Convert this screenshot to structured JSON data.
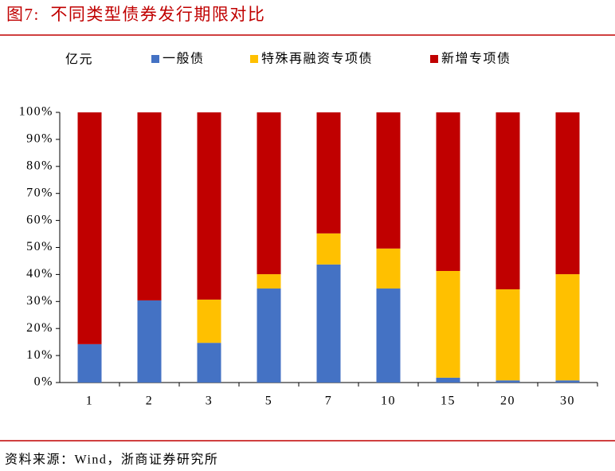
{
  "chart_data": {
    "type": "stacked_bar",
    "title": "图7:  不同类型债券发行期限对比",
    "y_unit_label": "亿元",
    "source": "资料来源：Wind，浙商证券研究所",
    "categories": [
      "1",
      "2",
      "3",
      "5",
      "7",
      "10",
      "15",
      "20",
      "30"
    ],
    "series": [
      {
        "name": "一般债",
        "color": "#4472c4",
        "values": [
          14.2,
          30.4,
          14.7,
          34.8,
          43.7,
          34.8,
          1.8,
          0.8,
          0.8
        ]
      },
      {
        "name": "特殊再融资专项债",
        "color": "#ffc000",
        "values": [
          0,
          0,
          16.0,
          5.3,
          11.5,
          14.8,
          39.5,
          33.7,
          39.3
        ]
      },
      {
        "name": "新增专项债",
        "color": "#c00000",
        "values": [
          85.8,
          69.6,
          69.3,
          59.9,
          44.8,
          50.4,
          58.7,
          65.5,
          59.9
        ]
      }
    ],
    "ylim": [
      0,
      100
    ],
    "yticks": [
      {
        "value": 0,
        "label": "0%"
      },
      {
        "value": 10,
        "label": "10%"
      },
      {
        "value": 20,
        "label": "20%"
      },
      {
        "value": 30,
        "label": "30%"
      },
      {
        "value": 40,
        "label": "40%"
      },
      {
        "value": 50,
        "label": "50%"
      },
      {
        "value": 60,
        "label": "60%"
      },
      {
        "value": 70,
        "label": "70%"
      },
      {
        "value": 80,
        "label": "80%"
      },
      {
        "value": 90,
        "label": "90%"
      },
      {
        "value": 100,
        "label": "100%"
      }
    ],
    "legend": "top"
  }
}
